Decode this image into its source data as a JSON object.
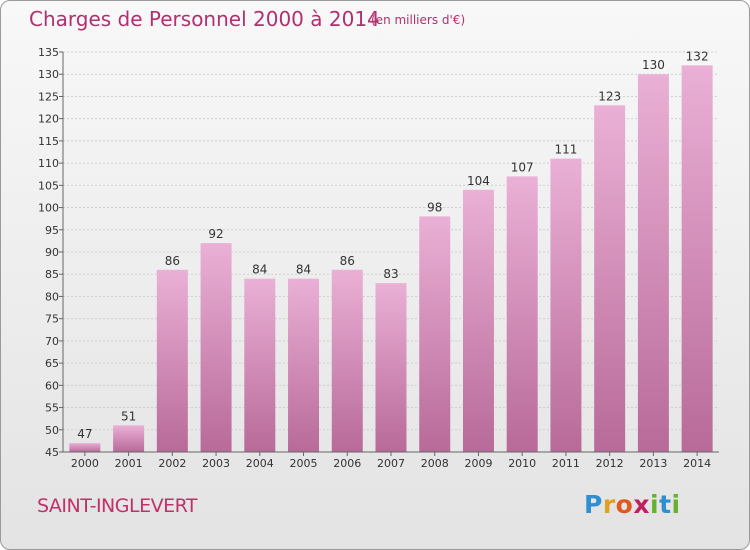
{
  "title": "Charges de Personnel 2000 à 2014",
  "subtitle": "(en milliers d'€)",
  "commune": "SAINT-INGLEVERT",
  "logo_text": "Proxiti",
  "colors": {
    "accent": "#b03070",
    "bar_light": "#eab0d6",
    "bar_dark": "#b86a98"
  },
  "chart_data": {
    "type": "bar",
    "title": "Charges de Personnel 2000 à 2014",
    "subtitle": "(en milliers d'€)",
    "xlabel": "",
    "ylabel": "",
    "categories": [
      "2000",
      "2001",
      "2002",
      "2003",
      "2004",
      "2005",
      "2006",
      "2007",
      "2008",
      "2009",
      "2010",
      "2011",
      "2012",
      "2013",
      "2014"
    ],
    "values": [
      47,
      51,
      86,
      92,
      84,
      84,
      86,
      83,
      98,
      104,
      107,
      111,
      123,
      130,
      132
    ],
    "ylim": [
      45,
      135
    ],
    "yticks": [
      45,
      50,
      55,
      60,
      65,
      70,
      75,
      80,
      85,
      90,
      95,
      100,
      105,
      110,
      115,
      120,
      125,
      130,
      135
    ],
    "grid": true
  }
}
